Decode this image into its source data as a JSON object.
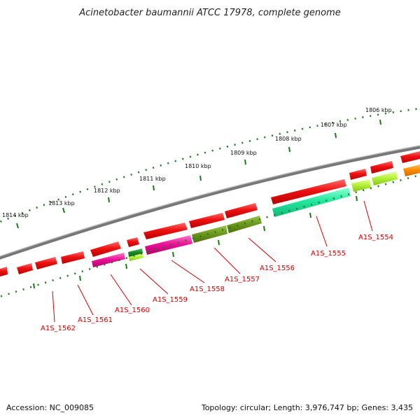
{
  "title": "Acinetobacter baumannii ATCC 17978, complete genome",
  "footer": {
    "accession": "Accession: NC_009085",
    "summary": "Topology: circular; Length: 3,976,747 bp; Genes: 3,435"
  },
  "scale": {
    "unit": "kbp",
    "major_ticks": [
      {
        "kbp": 1814,
        "label": "1814 kbp"
      },
      {
        "kbp": 1813,
        "label": "1813 kbp"
      },
      {
        "kbp": 1812,
        "label": "1812 kbp"
      },
      {
        "kbp": 1811,
        "label": "1811 kbp"
      },
      {
        "kbp": 1810,
        "label": "1810 kbp"
      },
      {
        "kbp": 1809,
        "label": "1809 kbp"
      },
      {
        "kbp": 1808,
        "label": "1808 kbp"
      },
      {
        "kbp": 1807,
        "label": "1807 kbp"
      },
      {
        "kbp": 1806,
        "label": "1806 kbp"
      }
    ]
  },
  "gene_labels": [
    "A1S_1562",
    "A1S_1561",
    "A1S_1560",
    "A1S_1559",
    "A1S_1558",
    "A1S_1557",
    "A1S_1556",
    "A1S_1555",
    "A1S_1554"
  ],
  "colors": {
    "backbone": "#777777",
    "tick": "#1a7a1a",
    "cds_red": "#ee1111",
    "magenta": "#ee1199",
    "olive": "#6e9a1e",
    "mint": "#22e8a0",
    "lime": "#b6f23a",
    "dark_green": "#1e8a2a",
    "orange": "#ff8c00",
    "label_red": "#d40000"
  }
}
